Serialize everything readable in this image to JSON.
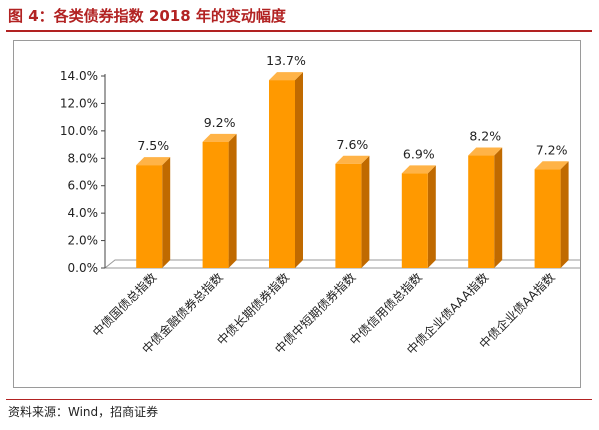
{
  "figure": {
    "title": "图 4：各类债券指数 2018 年的变动幅度",
    "source": "资料来源：Wind，招商证券"
  },
  "colors": {
    "bar_front": "#FF9900",
    "bar_side": "#C06A00",
    "bar_top": "#FFB347",
    "title": "#B22222"
  },
  "chart_data": {
    "type": "bar",
    "title": "",
    "xlabel": "",
    "ylabel": "",
    "categories": [
      "中债国债总指数",
      "中债金融债券总指数",
      "中债长期债券指数",
      "中债中短期债券指数",
      "中债信用债总指数",
      "中债企业债AAA指数",
      "中债企业债AA指数"
    ],
    "values": [
      7.5,
      9.2,
      13.7,
      7.6,
      6.9,
      8.2,
      7.2
    ],
    "data_labels": [
      "7.5%",
      "9.2%",
      "13.7%",
      "7.6%",
      "6.9%",
      "8.2%",
      "7.2%"
    ],
    "ylim": [
      0,
      14
    ],
    "yticks": [
      0,
      2,
      4,
      6,
      8,
      10,
      12,
      14
    ],
    "ytick_labels": [
      "0.0%",
      "2.0%",
      "4.0%",
      "6.0%",
      "8.0%",
      "10.0%",
      "12.0%",
      "14.0%"
    ],
    "grid": false,
    "legend": "none",
    "style": "3d-column"
  }
}
